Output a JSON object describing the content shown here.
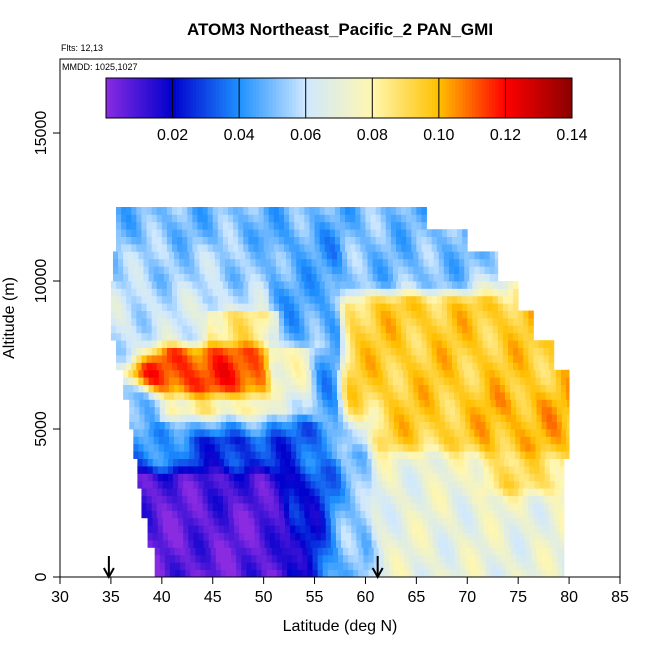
{
  "chart_data": {
    "type": "heatmap",
    "title": "ATOM3 Northeast_Pacific_2 PAN_GMI",
    "subtitle_lines": [
      "Flts: 12,13",
      "MMDD: 1025,1027"
    ],
    "xlabel": "Latitude (deg N)",
    "ylabel": "Altitude (m)",
    "xlim": [
      30,
      85
    ],
    "ylim": [
      0,
      17500
    ],
    "xticks": [
      30,
      35,
      40,
      45,
      50,
      55,
      60,
      65,
      70,
      75,
      80,
      85
    ],
    "yticks": [
      0,
      5000,
      10000,
      15000
    ],
    "colorbar": {
      "range": [
        0.0,
        0.14
      ],
      "ticks": [
        0.02,
        0.04,
        0.06,
        0.08,
        0.1,
        0.12,
        0.14
      ],
      "tick_labels": [
        "0.02",
        "0.04",
        "0.06",
        "0.08",
        "0.10",
        "0.12",
        "0.14"
      ],
      "colors": [
        "#8a2be2",
        "#0000cd",
        "#1e90ff",
        "#cfe8ff",
        "#fff7b0",
        "#ffc000",
        "#ff0000",
        "#8b0000"
      ]
    },
    "arrows_lat": [
      34.8,
      61.2
    ],
    "data_extent": {
      "rows": [
        {
          "alt": 12250,
          "lat": [
            35.5,
            66.0
          ]
        },
        {
          "alt": 11500,
          "lat": [
            35.5,
            70.0
          ]
        },
        {
          "alt": 10500,
          "lat": [
            35.2,
            73.0
          ]
        },
        {
          "alt": 9500,
          "lat": [
            35.0,
            75.0
          ]
        },
        {
          "alt": 8500,
          "lat": [
            35.0,
            76.5
          ]
        },
        {
          "alt": 7500,
          "lat": [
            35.5,
            78.5
          ]
        },
        {
          "alt": 6500,
          "lat": [
            36.2,
            80.0
          ]
        },
        {
          "alt": 5500,
          "lat": [
            36.8,
            80.0
          ]
        },
        {
          "alt": 4500,
          "lat": [
            37.2,
            80.0
          ]
        },
        {
          "alt": 3500,
          "lat": [
            37.6,
            79.5
          ]
        },
        {
          "alt": 2500,
          "lat": [
            38.0,
            79.5
          ]
        },
        {
          "alt": 1500,
          "lat": [
            38.6,
            79.5
          ]
        },
        {
          "alt": 500,
          "lat": [
            39.3,
            79.5
          ]
        }
      ]
    },
    "regions": [
      {
        "lat": [
          38,
          54
        ],
        "alt": [
          0,
          3000
        ],
        "value": 0.006
      },
      {
        "lat": [
          44,
          52
        ],
        "alt": [
          3000,
          4200
        ],
        "value": 0.012
      },
      {
        "lat": [
          54,
          59
        ],
        "alt": [
          0,
          4500
        ],
        "value": 0.035
      },
      {
        "lat": [
          59,
          80
        ],
        "alt": [
          0,
          3500
        ],
        "value": 0.07
      },
      {
        "lat": [
          60,
          79
        ],
        "alt": [
          5000,
          8500
        ],
        "value": 0.095
      },
      {
        "lat": [
          73,
          79
        ],
        "alt": [
          3500,
          5500
        ],
        "value": 0.105
      },
      {
        "lat": [
          42,
          53
        ],
        "alt": [
          6000,
          7200
        ],
        "value": 0.115
      },
      {
        "lat": [
          46,
          50
        ],
        "alt": [
          7800,
          8400
        ],
        "value": 0.11
      },
      {
        "lat": [
          35,
          54
        ],
        "alt": [
          8500,
          10500
        ],
        "value": 0.06
      },
      {
        "lat": [
          36,
          66
        ],
        "alt": [
          10500,
          12500
        ],
        "value": 0.05
      },
      {
        "lat": [
          52,
          56
        ],
        "alt": [
          4000,
          10500
        ],
        "value": 0.03
      },
      {
        "lat": [
          38,
          52
        ],
        "alt": [
          4200,
          5500
        ],
        "value": 0.045
      }
    ]
  }
}
